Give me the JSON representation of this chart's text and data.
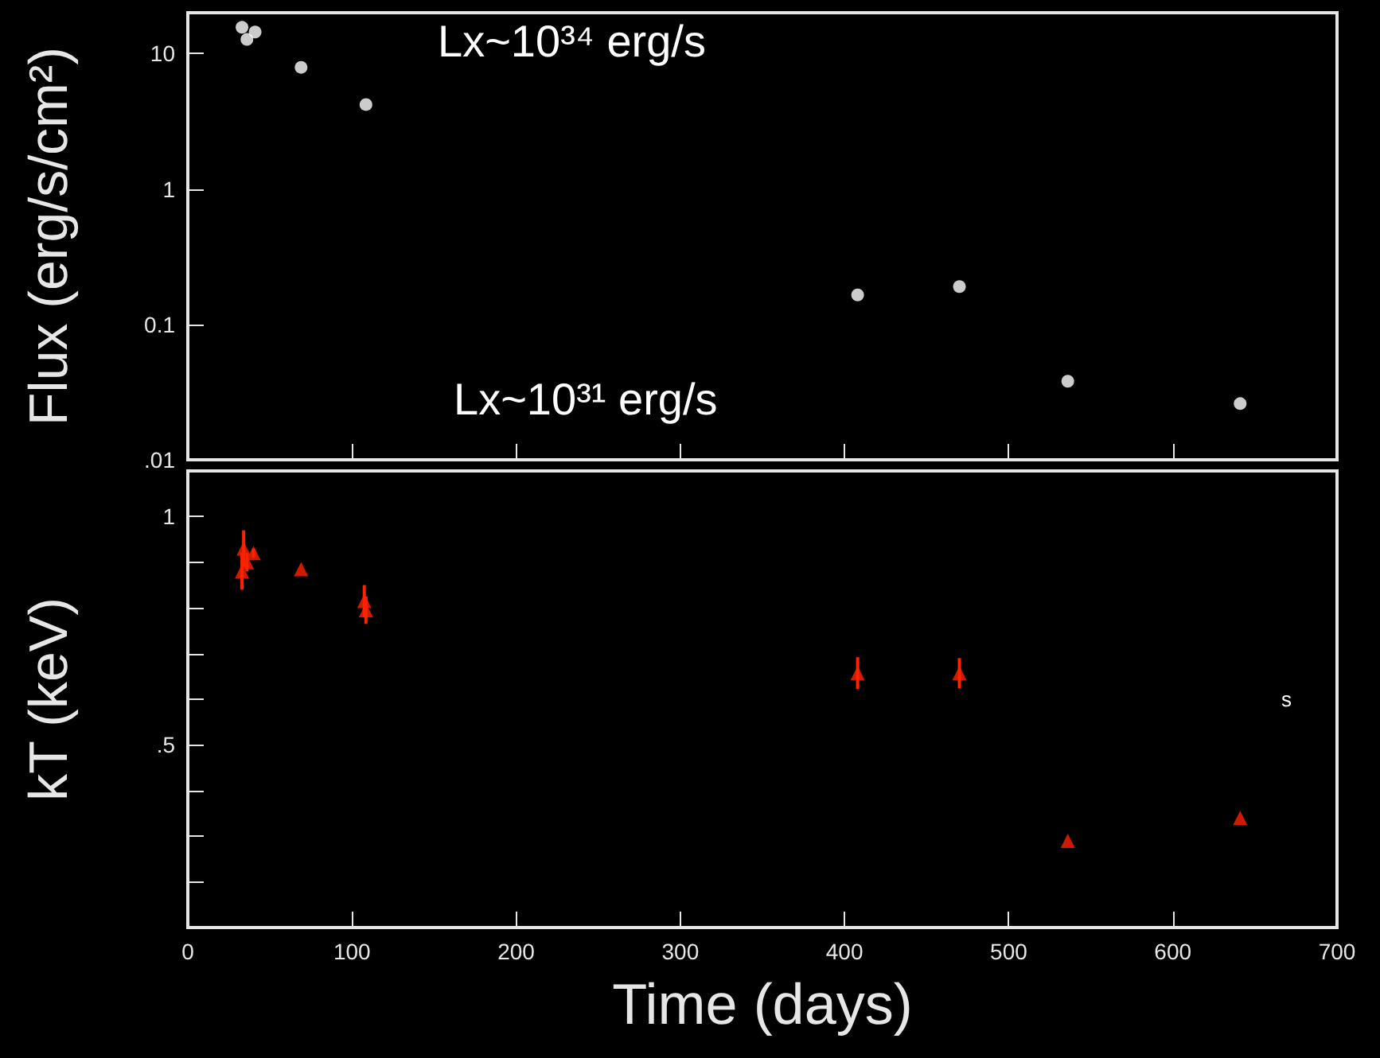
{
  "chart_data": [
    {
      "type": "scatter",
      "ylabel": "Flux (erg/s/cm²)",
      "annotations": [
        "Lx~10³⁴ erg/s",
        "Lx~10³¹ erg/s"
      ],
      "log": "y",
      "xlim": [
        0,
        700
      ],
      "xticks": [
        0,
        100,
        200,
        300,
        400,
        500,
        600,
        700
      ],
      "ylim": [
        0.01,
        20
      ],
      "yticks": [
        {
          "value": 0.01,
          "label": ".01"
        },
        0.1,
        1,
        10
      ],
      "tick_labels": "y",
      "marker": "circle",
      "series": [
        {
          "color": "#ffffff",
          "x": [
            33,
            36,
            41,
            69,
            108.5,
            408,
            470,
            536,
            641
          ],
          "values": [
            15.6,
            12.7,
            14.4,
            7.9,
            4.2,
            0.165,
            0.19,
            0.038,
            0.026
          ]
        }
      ]
    },
    {
      "type": "scatter",
      "xlabel": "Time (days)",
      "ylabel": "kT (keV)",
      "annotations": [
        "s"
      ],
      "xlim": [
        0,
        700
      ],
      "xticks": [
        0,
        100,
        200,
        300,
        400,
        500,
        600,
        700
      ],
      "ylim": [
        0.1,
        1.1
      ],
      "yticks": [
        {
          "value": 0.2,
          "label": null
        },
        {
          "value": 0.3,
          "label": null
        },
        {
          "value": 0.4,
          "label": null
        },
        {
          "value": 0.5,
          "label": ".5"
        },
        {
          "value": 0.6,
          "label": null
        },
        {
          "value": 0.7,
          "label": null
        },
        {
          "value": 0.8,
          "label": null
        },
        {
          "value": 0.9,
          "label": null
        },
        1
      ],
      "marker": "triangle",
      "series": [
        {
          "color": "#ff2200",
          "x": [
            33,
            34,
            36,
            40,
            69,
            107.5,
            108.5,
            408,
            470,
            536,
            641
          ],
          "values": [
            0.88,
            0.93,
            0.9,
            0.92,
            0.885,
            0.815,
            0.795,
            0.657,
            0.657,
            0.29,
            0.34
          ],
          "errors": [
            0.04,
            0.04,
            0.02,
            0.01,
            null,
            0.035,
            0.03,
            0.035,
            0.033,
            null,
            null
          ]
        }
      ]
    }
  ]
}
